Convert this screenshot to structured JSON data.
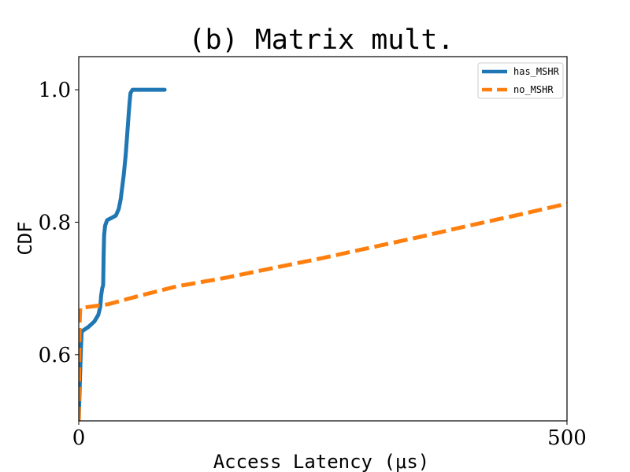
{
  "chart_data": {
    "type": "line",
    "title": "(b) Matrix mult.",
    "xlabel": "Access Latency (μs)",
    "ylabel": "CDF",
    "xlim": [
      0,
      500
    ],
    "ylim": [
      0.5,
      1.05
    ],
    "xticks": [
      0,
      500
    ],
    "xtick_labels": [
      "0",
      "500"
    ],
    "yticks": [
      0.6,
      0.8,
      1.0
    ],
    "ytick_labels": [
      "0.6",
      "0.8",
      "1.0"
    ],
    "grid": false,
    "legend_position": "top-right",
    "series": [
      {
        "name": "has_MSHR",
        "color": "#1f77b4",
        "style": "solid",
        "points": [
          [
            0,
            0.5
          ],
          [
            1,
            0.55
          ],
          [
            2,
            0.6
          ],
          [
            3,
            0.635
          ],
          [
            10,
            0.642
          ],
          [
            16,
            0.65
          ],
          [
            20,
            0.66
          ],
          [
            22,
            0.672
          ],
          [
            23,
            0.69
          ],
          [
            24,
            0.7
          ],
          [
            25,
            0.705
          ],
          [
            25.5,
            0.75
          ],
          [
            26,
            0.78
          ],
          [
            27,
            0.795
          ],
          [
            29,
            0.803
          ],
          [
            33,
            0.806
          ],
          [
            38,
            0.81
          ],
          [
            41,
            0.82
          ],
          [
            43,
            0.835
          ],
          [
            46,
            0.87
          ],
          [
            48,
            0.9
          ],
          [
            50,
            0.94
          ],
          [
            51,
            0.96
          ],
          [
            52,
            0.98
          ],
          [
            53,
            0.995
          ],
          [
            55,
            1.0
          ],
          [
            88,
            1.0
          ]
        ]
      },
      {
        "name": "no_MSHR",
        "color": "#ff7f0e",
        "style": "dashed",
        "points": [
          [
            0,
            0.5
          ],
          [
            0.5,
            0.58
          ],
          [
            1,
            0.65
          ],
          [
            1.5,
            0.67
          ],
          [
            5,
            0.671
          ],
          [
            30,
            0.676
          ],
          [
            60,
            0.688
          ],
          [
            100,
            0.703
          ],
          [
            150,
            0.716
          ],
          [
            200,
            0.731
          ],
          [
            250,
            0.746
          ],
          [
            300,
            0.762
          ],
          [
            350,
            0.778
          ],
          [
            400,
            0.795
          ],
          [
            450,
            0.811
          ],
          [
            500,
            0.828
          ]
        ]
      }
    ]
  }
}
